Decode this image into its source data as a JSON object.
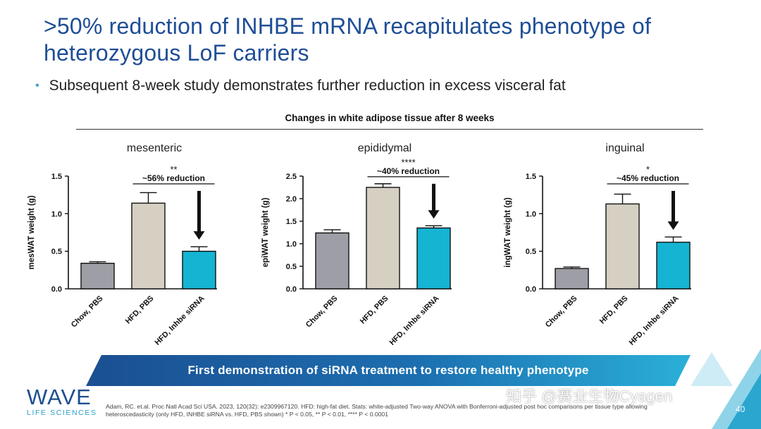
{
  "title": ">50% reduction of INHBE mRNA recapitulates phenotype of heterozygous LoF carriers",
  "bullet": "Subsequent 8-week study demonstrates further reduction in excess visceral fat",
  "charts_title": "Changes in white adipose tissue after 8 weeks",
  "chart_data": [
    {
      "type": "bar",
      "title": "mesenteric",
      "ylabel": "mesWAT weight (g)",
      "ylim": [
        0,
        1.5
      ],
      "yticks": [
        0.0,
        0.5,
        1.0,
        1.5
      ],
      "ytick_labels": [
        "0.0",
        "0.5",
        "1.0",
        "1.5"
      ],
      "categories": [
        "Chow, PBS",
        "HFD, PBS",
        "HFD, Inhbe siRNA"
      ],
      "values": [
        0.34,
        1.14,
        0.5
      ],
      "errors": [
        0.02,
        0.14,
        0.06
      ],
      "colors": [
        "#9e9ea6",
        "#d5d0c2",
        "#14b4d2"
      ],
      "significance": "**",
      "annotation": "~56% reduction"
    },
    {
      "type": "bar",
      "title": "epididymal",
      "ylabel": "epiWAT weight (g)",
      "ylim": [
        0,
        2.5
      ],
      "yticks": [
        0.0,
        0.5,
        1.0,
        1.5,
        2.0,
        2.5
      ],
      "ytick_labels": [
        "0.0",
        "0.5",
        "1.0",
        "1.5",
        "2.0",
        "2.5"
      ],
      "categories": [
        "Chow, PBS",
        "HFD, PBS",
        "HFD, Inhbe siRNA"
      ],
      "values": [
        1.24,
        2.25,
        1.35
      ],
      "errors": [
        0.07,
        0.08,
        0.05
      ],
      "colors": [
        "#9e9ea6",
        "#d5d0c2",
        "#14b4d2"
      ],
      "significance": "****",
      "annotation": "~40% reduction"
    },
    {
      "type": "bar",
      "title": "inguinal",
      "ylabel": "ingWAT weight (g)",
      "ylim": [
        0,
        1.5
      ],
      "yticks": [
        0.0,
        0.5,
        1.0,
        1.5
      ],
      "ytick_labels": [
        "0.0",
        "0.5",
        "1.0",
        "1.5"
      ],
      "categories": [
        "Chow, PBS",
        "HFD, PBS",
        "HFD, Inhbe siRNA"
      ],
      "values": [
        0.27,
        1.13,
        0.62
      ],
      "errors": [
        0.02,
        0.13,
        0.07
      ],
      "colors": [
        "#9e9ea6",
        "#d5d0c2",
        "#14b4d2"
      ],
      "significance": "*",
      "annotation": "~45% reduction"
    }
  ],
  "banner": "First demonstration of siRNA treatment to restore healthy phenotype",
  "logo": "WAVE",
  "logo_sub": "LIFE SCIENCES",
  "citation": "Adam, RC. et.al. Proc Natl Acad Sci USA. 2023, 120(32): e2309967120. HFD: high-fat diet. Stats: white-adjusted Two-way ANOVA with Bonferroni-adjusted post hoc comparisons per tissue type allowing heteroscedasticity (only HFD, INHBE siRNA vs. HFD, PBS shown) * P < 0.05, ** P < 0.01, **** P < 0.0001",
  "watermark": "知乎 @赛业生物Cyagen",
  "page_number": "40",
  "colors": {
    "title": "#1f4e96",
    "accent": "#2aa0c8",
    "banner_dark": "#1b4f92",
    "banner_light": "#2ab0d8"
  }
}
